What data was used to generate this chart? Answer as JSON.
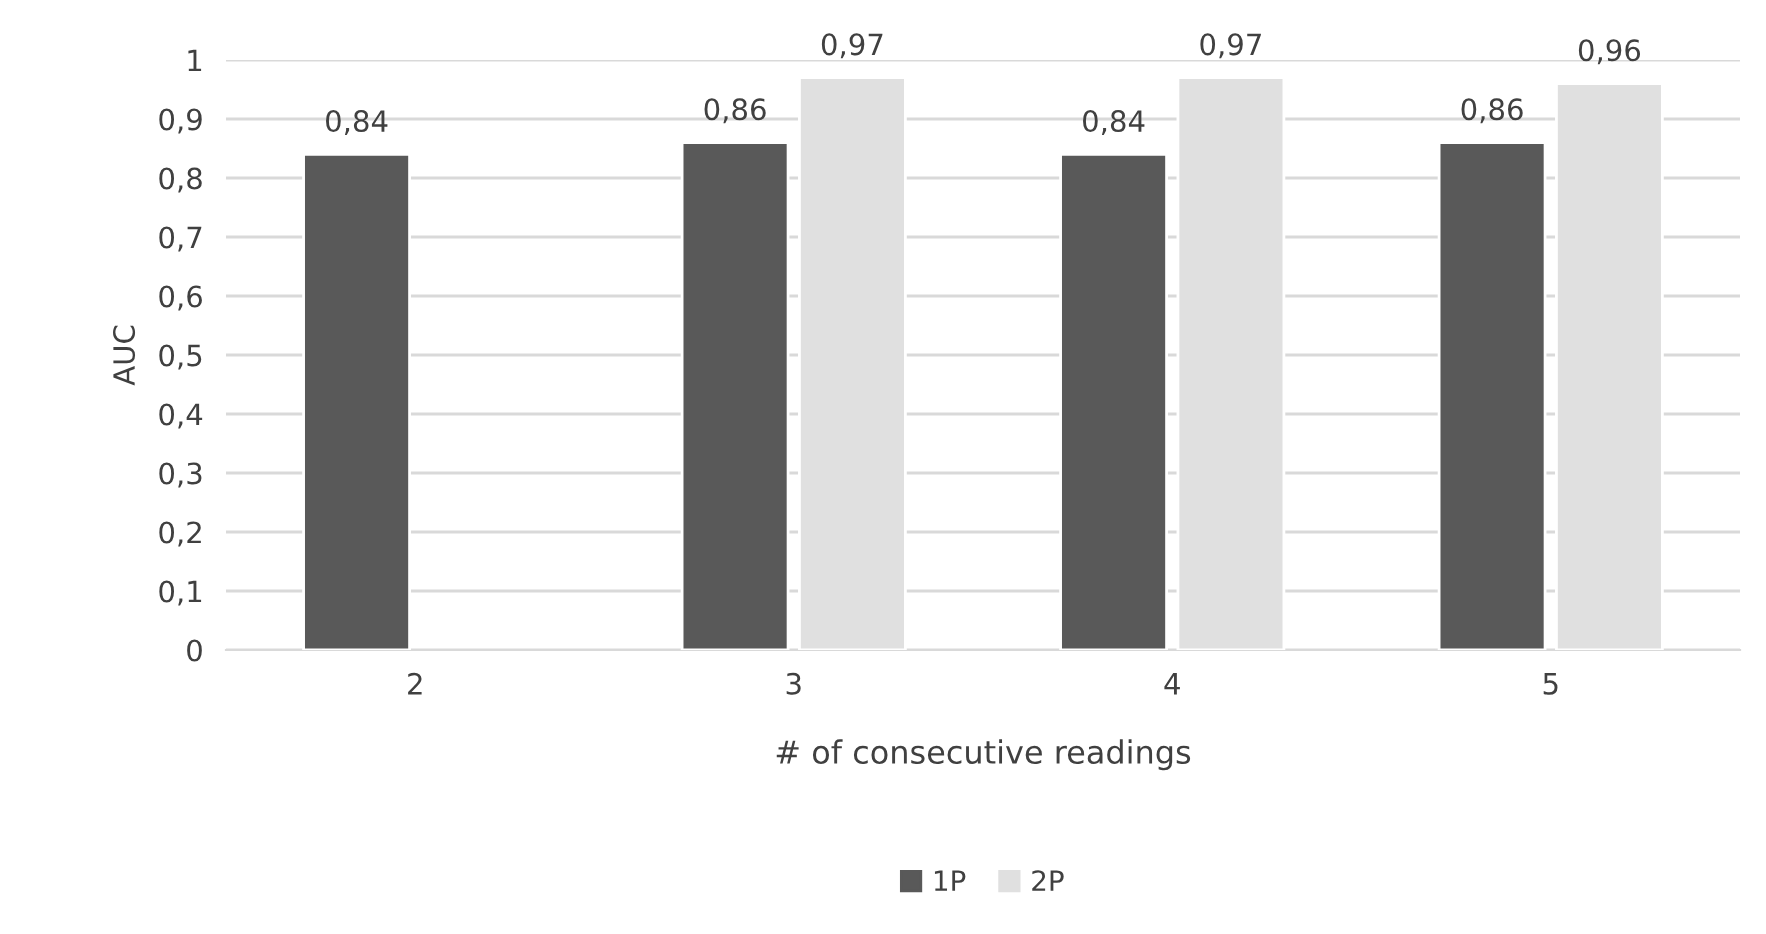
{
  "chart_data": {
    "type": "bar",
    "xlabel": "# of consecutive readings",
    "ylabel": "AUC",
    "categories": [
      "2",
      "3",
      "4",
      "5"
    ],
    "series": [
      {
        "name": "1P",
        "color": "#595959",
        "values": [
          0.84,
          0.86,
          0.84,
          0.86
        ],
        "value_labels": [
          "0,84",
          "0,86",
          "0,84",
          "0,86"
        ]
      },
      {
        "name": "2P",
        "color": "#e0e0e0",
        "values": [
          null,
          0.97,
          0.97,
          0.96
        ],
        "value_labels": [
          null,
          "0,97",
          "0,97",
          "0,96"
        ]
      }
    ],
    "ylim": [
      0,
      1
    ],
    "yticks": [
      0,
      {
        "value": 0.1,
        "label": "0,1"
      },
      {
        "value": 0.2,
        "label": "0,2"
      },
      {
        "value": 0.3,
        "label": "0,3"
      },
      {
        "value": 0.4,
        "label": "0,4"
      },
      {
        "value": 0.5,
        "label": "0,5"
      },
      {
        "value": 0.6,
        "label": "0,6"
      },
      {
        "value": 0.7,
        "label": "0,7"
      },
      {
        "value": 0.8,
        "label": "0,8"
      },
      {
        "value": 0.9,
        "label": "0,9"
      },
      1
    ],
    "grid": "y",
    "legend": "bottom"
  }
}
